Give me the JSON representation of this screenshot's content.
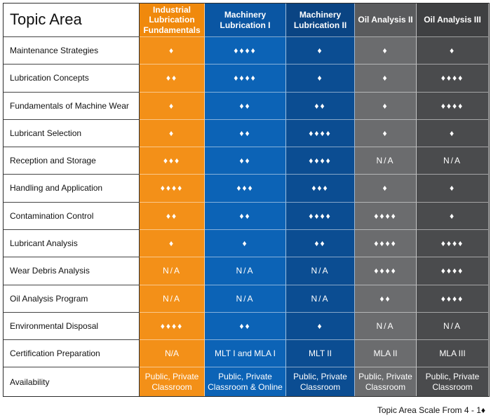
{
  "header": {
    "title": "Topic Area",
    "courses": [
      "Industrial Lubrication Fundamentals",
      "Machinery Lubrication I",
      "Machinery Lubrication II",
      "Oil Analysis II",
      "Oil Analysis III"
    ]
  },
  "rows": [
    {
      "topic": "Maintenance Strategies",
      "values": [
        "♦",
        "♦♦♦♦",
        "♦",
        "♦",
        "♦"
      ]
    },
    {
      "topic": "Lubrication Concepts",
      "values": [
        "♦♦",
        "♦♦♦♦",
        "♦",
        "♦",
        "♦♦♦♦"
      ]
    },
    {
      "topic": "Fundamentals of Machine Wear",
      "values": [
        "♦",
        "♦♦",
        "♦♦",
        "♦",
        "♦♦♦♦"
      ]
    },
    {
      "topic": "Lubricant Selection",
      "values": [
        "♦",
        "♦♦",
        "♦♦♦♦",
        "♦",
        "♦"
      ]
    },
    {
      "topic": "Reception and Storage",
      "values": [
        "♦♦♦",
        "♦♦",
        "♦♦♦♦",
        "N/A",
        "N/A"
      ]
    },
    {
      "topic": "Handling and Application",
      "values": [
        "♦♦♦♦",
        "♦♦♦",
        "♦♦♦",
        "♦",
        "♦"
      ]
    },
    {
      "topic": "Contamination Control",
      "values": [
        "♦♦",
        "♦♦",
        "♦♦♦♦",
        "♦♦♦♦",
        "♦"
      ]
    },
    {
      "topic": "Lubricant Analysis",
      "values": [
        "♦",
        "♦",
        "♦♦",
        "♦♦♦♦",
        "♦♦♦♦"
      ]
    },
    {
      "topic": "Wear Debris Analysis",
      "values": [
        "N/A",
        "N/A",
        "N/A",
        "♦♦♦♦",
        "♦♦♦♦"
      ]
    },
    {
      "topic": "Oil Analysis Program",
      "values": [
        "N/A",
        "N/A",
        "N/A",
        "♦♦",
        "♦♦♦♦"
      ]
    },
    {
      "topic": "Environmental Disposal",
      "values": [
        "♦♦♦♦",
        "♦♦",
        "♦",
        "N/A",
        "N/A"
      ]
    },
    {
      "topic": "Certification Preparation",
      "values": [
        "N/A",
        "MLT I and MLA I",
        "MLT II",
        "MLA II",
        "MLA III"
      ]
    },
    {
      "topic": "Availability",
      "values": [
        "Public, Private Classroom",
        "Public, Private Classroom & Online",
        "Public, Private Classroom",
        "Public, Private Classroom",
        "Public, Private Classroom"
      ]
    }
  ],
  "footer": {
    "scale_text": "Topic Area Scale From 4 - 1♦"
  },
  "colors": {
    "col1": "#f39018",
    "col2": "#0c63b6",
    "col3": "#0b4d92",
    "col4": "#6b6c6e",
    "col5": "#4a4b4d"
  }
}
